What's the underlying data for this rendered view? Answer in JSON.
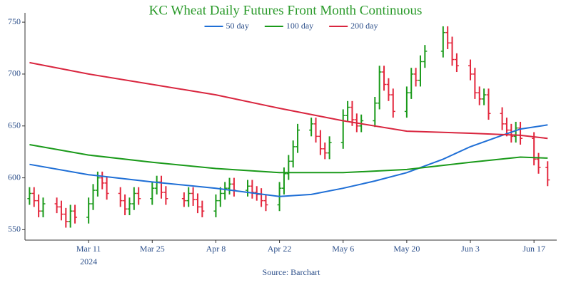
{
  "chart_data": {
    "type": "ohlc",
    "title": "KC Wheat Daily Futures Front Month Continuous",
    "source": "Source: Barchart",
    "x": [
      "2024-02-27",
      "2024-02-28",
      "2024-02-29",
      "2024-03-01",
      "2024-03-04",
      "2024-03-05",
      "2024-03-06",
      "2024-03-07",
      "2024-03-08",
      "2024-03-11",
      "2024-03-12",
      "2024-03-13",
      "2024-03-14",
      "2024-03-15",
      "2024-03-18",
      "2024-03-19",
      "2024-03-20",
      "2024-03-21",
      "2024-03-22",
      "2024-03-25",
      "2024-03-26",
      "2024-03-27",
      "2024-03-28",
      "2024-04-01",
      "2024-04-02",
      "2024-04-03",
      "2024-04-04",
      "2024-04-05",
      "2024-04-08",
      "2024-04-09",
      "2024-04-10",
      "2024-04-11",
      "2024-04-12",
      "2024-04-15",
      "2024-04-16",
      "2024-04-17",
      "2024-04-18",
      "2024-04-19",
      "2024-04-22",
      "2024-04-23",
      "2024-04-24",
      "2024-04-25",
      "2024-04-26",
      "2024-04-29",
      "2024-04-30",
      "2024-05-01",
      "2024-05-02",
      "2024-05-03",
      "2024-05-06",
      "2024-05-07",
      "2024-05-08",
      "2024-05-09",
      "2024-05-10",
      "2024-05-13",
      "2024-05-14",
      "2024-05-15",
      "2024-05-16",
      "2024-05-17",
      "2024-05-20",
      "2024-05-21",
      "2024-05-22",
      "2024-05-23",
      "2024-05-24",
      "2024-05-28",
      "2024-05-29",
      "2024-05-30",
      "2024-05-31",
      "2024-06-03",
      "2024-06-04",
      "2024-06-05",
      "2024-06-06",
      "2024-06-07",
      "2024-06-10",
      "2024-06-11",
      "2024-06-12",
      "2024-06-13",
      "2024-06-14",
      "2024-06-17",
      "2024-06-18",
      "2024-06-20"
    ],
    "open": [
      580,
      585,
      578,
      568,
      575,
      572,
      565,
      558,
      568,
      562,
      575,
      588,
      600,
      595,
      585,
      578,
      570,
      575,
      585,
      580,
      590,
      596,
      586,
      580,
      578,
      585,
      579,
      572,
      568,
      578,
      585,
      590,
      594,
      588,
      592,
      586,
      584,
      578,
      574,
      590,
      604,
      616,
      630,
      646,
      652,
      640,
      628,
      624,
      634,
      660,
      668,
      656,
      650,
      655,
      672,
      702,
      690,
      680,
      664,
      682,
      700,
      694,
      712,
      722,
      740,
      730,
      714,
      708,
      700,
      682,
      676,
      680,
      662,
      652,
      646,
      640,
      648,
      638,
      618,
      610
    ],
    "high": [
      591,
      591,
      584,
      581,
      581,
      578,
      571,
      574,
      574,
      581,
      594,
      606,
      606,
      601,
      591,
      584,
      581,
      591,
      591,
      596,
      602,
      602,
      592,
      586,
      591,
      591,
      585,
      578,
      584,
      591,
      596,
      600,
      600,
      598,
      598,
      592,
      590,
      584,
      596,
      610,
      622,
      636,
      652,
      658,
      658,
      646,
      634,
      640,
      666,
      674,
      674,
      662,
      661,
      678,
      708,
      708,
      696,
      686,
      688,
      706,
      706,
      718,
      728,
      746,
      746,
      736,
      720,
      714,
      706,
      688,
      686,
      686,
      668,
      658,
      652,
      654,
      654,
      644,
      624,
      616
    ],
    "low": [
      574,
      572,
      562,
      562,
      566,
      559,
      552,
      552,
      556,
      556,
      569,
      582,
      589,
      579,
      572,
      564,
      564,
      569,
      574,
      574,
      584,
      580,
      574,
      572,
      572,
      573,
      566,
      562,
      562,
      572,
      579,
      584,
      582,
      582,
      580,
      578,
      572,
      568,
      568,
      584,
      598,
      610,
      624,
      640,
      634,
      622,
      618,
      618,
      628,
      654,
      650,
      644,
      644,
      649,
      666,
      684,
      674,
      658,
      658,
      676,
      688,
      688,
      706,
      716,
      724,
      708,
      702,
      694,
      676,
      670,
      670,
      656,
      646,
      640,
      634,
      634,
      632,
      612,
      604,
      592
    ],
    "close": [
      585,
      578,
      568,
      575,
      572,
      565,
      558,
      568,
      562,
      575,
      588,
      600,
      595,
      585,
      578,
      570,
      575,
      585,
      580,
      590,
      596,
      586,
      580,
      578,
      585,
      579,
      572,
      568,
      578,
      585,
      590,
      594,
      588,
      592,
      586,
      584,
      578,
      574,
      590,
      604,
      616,
      630,
      646,
      652,
      640,
      628,
      624,
      634,
      660,
      668,
      656,
      650,
      655,
      672,
      702,
      690,
      680,
      664,
      682,
      700,
      694,
      712,
      722,
      740,
      730,
      714,
      708,
      700,
      682,
      676,
      680,
      662,
      652,
      646,
      640,
      648,
      638,
      618,
      610,
      598
    ],
    "up_color": "#1a9a1a",
    "down_color": "#e3263c",
    "series": [
      {
        "name": "50 day",
        "color": "#1f6fd6",
        "x": [
          "2024-02-27",
          "2024-03-11",
          "2024-03-25",
          "2024-04-08",
          "2024-04-22",
          "2024-04-29",
          "2024-05-06",
          "2024-05-13",
          "2024-05-20",
          "2024-05-28",
          "2024-06-03",
          "2024-06-10",
          "2024-06-14",
          "2024-06-20"
        ],
        "values": [
          613,
          603,
          596,
          590,
          582,
          584,
          590,
          597,
          605,
          618,
          630,
          641,
          647,
          651
        ]
      },
      {
        "name": "100 day",
        "color": "#1a9a1a",
        "x": [
          "2024-02-27",
          "2024-03-11",
          "2024-03-25",
          "2024-04-08",
          "2024-04-22",
          "2024-05-06",
          "2024-05-20",
          "2024-06-03",
          "2024-06-14",
          "2024-06-20"
        ],
        "values": [
          632,
          622,
          615,
          609,
          605,
          605,
          608,
          615,
          620,
          619
        ]
      },
      {
        "name": "200 day",
        "color": "#d9263f",
        "x": [
          "2024-02-27",
          "2024-03-11",
          "2024-03-25",
          "2024-04-08",
          "2024-04-22",
          "2024-05-06",
          "2024-05-20",
          "2024-06-03",
          "2024-06-14",
          "2024-06-20"
        ],
        "values": [
          711,
          700,
          690,
          680,
          667,
          655,
          645,
          643,
          641,
          638
        ]
      }
    ],
    "xlim": [
      "2024-02-26",
      "2024-06-22"
    ],
    "xticks": [
      {
        "value": "2024-03-11",
        "label": "Mar 11"
      },
      {
        "value": "2024-03-25",
        "label": "Mar 25"
      },
      {
        "value": "2024-04-08",
        "label": "Apr 8"
      },
      {
        "value": "2024-04-22",
        "label": "Apr 22"
      },
      {
        "value": "2024-05-06",
        "label": "May 6"
      },
      {
        "value": "2024-05-20",
        "label": "May 20"
      },
      {
        "value": "2024-06-03",
        "label": "Jun 3"
      },
      {
        "value": "2024-06-17",
        "label": "Jun 17"
      }
    ],
    "year": "2024",
    "ylim": [
      540,
      759
    ],
    "yticks": [
      550,
      600,
      650,
      700,
      750
    ],
    "grid": false,
    "legend": "top"
  }
}
